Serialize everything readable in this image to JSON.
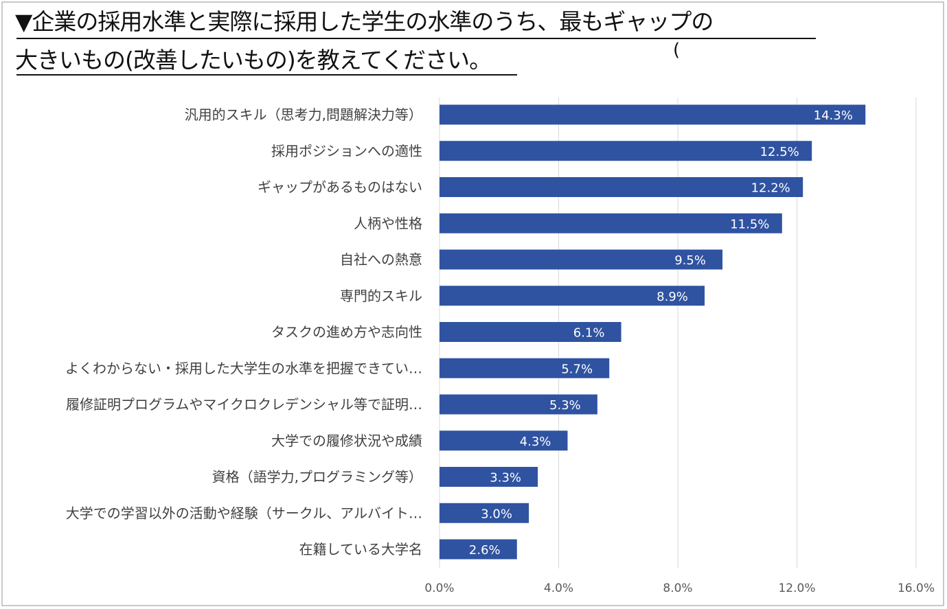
{
  "title": {
    "line1": "▼企業の採用水準と実際に採用した学生の水準のうち、最もギャップの",
    "line2": "大きいもの(改善したいもの)を教えてください。",
    "stray_mark": "("
  },
  "colors": {
    "bar": "#2f53a1",
    "grid": "#d9d9d9",
    "axis_text": "#595959",
    "label_text": "#404040"
  },
  "chart_data": {
    "type": "bar",
    "orientation": "horizontal",
    "categories": [
      "汎用的スキル（思考力,問題解決力等）",
      "採用ポジションへの適性",
      "ギャップがあるものはない",
      "人柄や性格",
      "自社への熱意",
      "専門的スキル",
      "タスクの進め方や志向性",
      "よくわからない・採用した大学生の水準を把握できてい…",
      "履修証明プログラムやマイクロクレデンシャル等で証明…",
      "大学での履修状況や成績",
      "資格（語学力,プログラミング等）",
      "大学での学習以外の活動や経験（サークル、アルバイト…",
      "在籍している大学名"
    ],
    "values": [
      14.3,
      12.5,
      12.2,
      11.5,
      9.5,
      8.9,
      6.1,
      5.7,
      5.3,
      4.3,
      3.3,
      3.0,
      2.6
    ],
    "data_labels": [
      "14.3%",
      "12.5%",
      "12.2%",
      "11.5%",
      "9.5%",
      "8.9%",
      "6.1%",
      "5.7%",
      "5.3%",
      "4.3%",
      "3.3%",
      "3.0%",
      "2.6%"
    ],
    "xlim": [
      0,
      16
    ],
    "xticks": [
      0,
      4,
      8,
      12,
      16
    ],
    "xtick_labels": [
      "0.0%",
      "4.0%",
      "8.0%",
      "12.0%",
      "16.0%"
    ],
    "grid": true,
    "legend": "none"
  }
}
